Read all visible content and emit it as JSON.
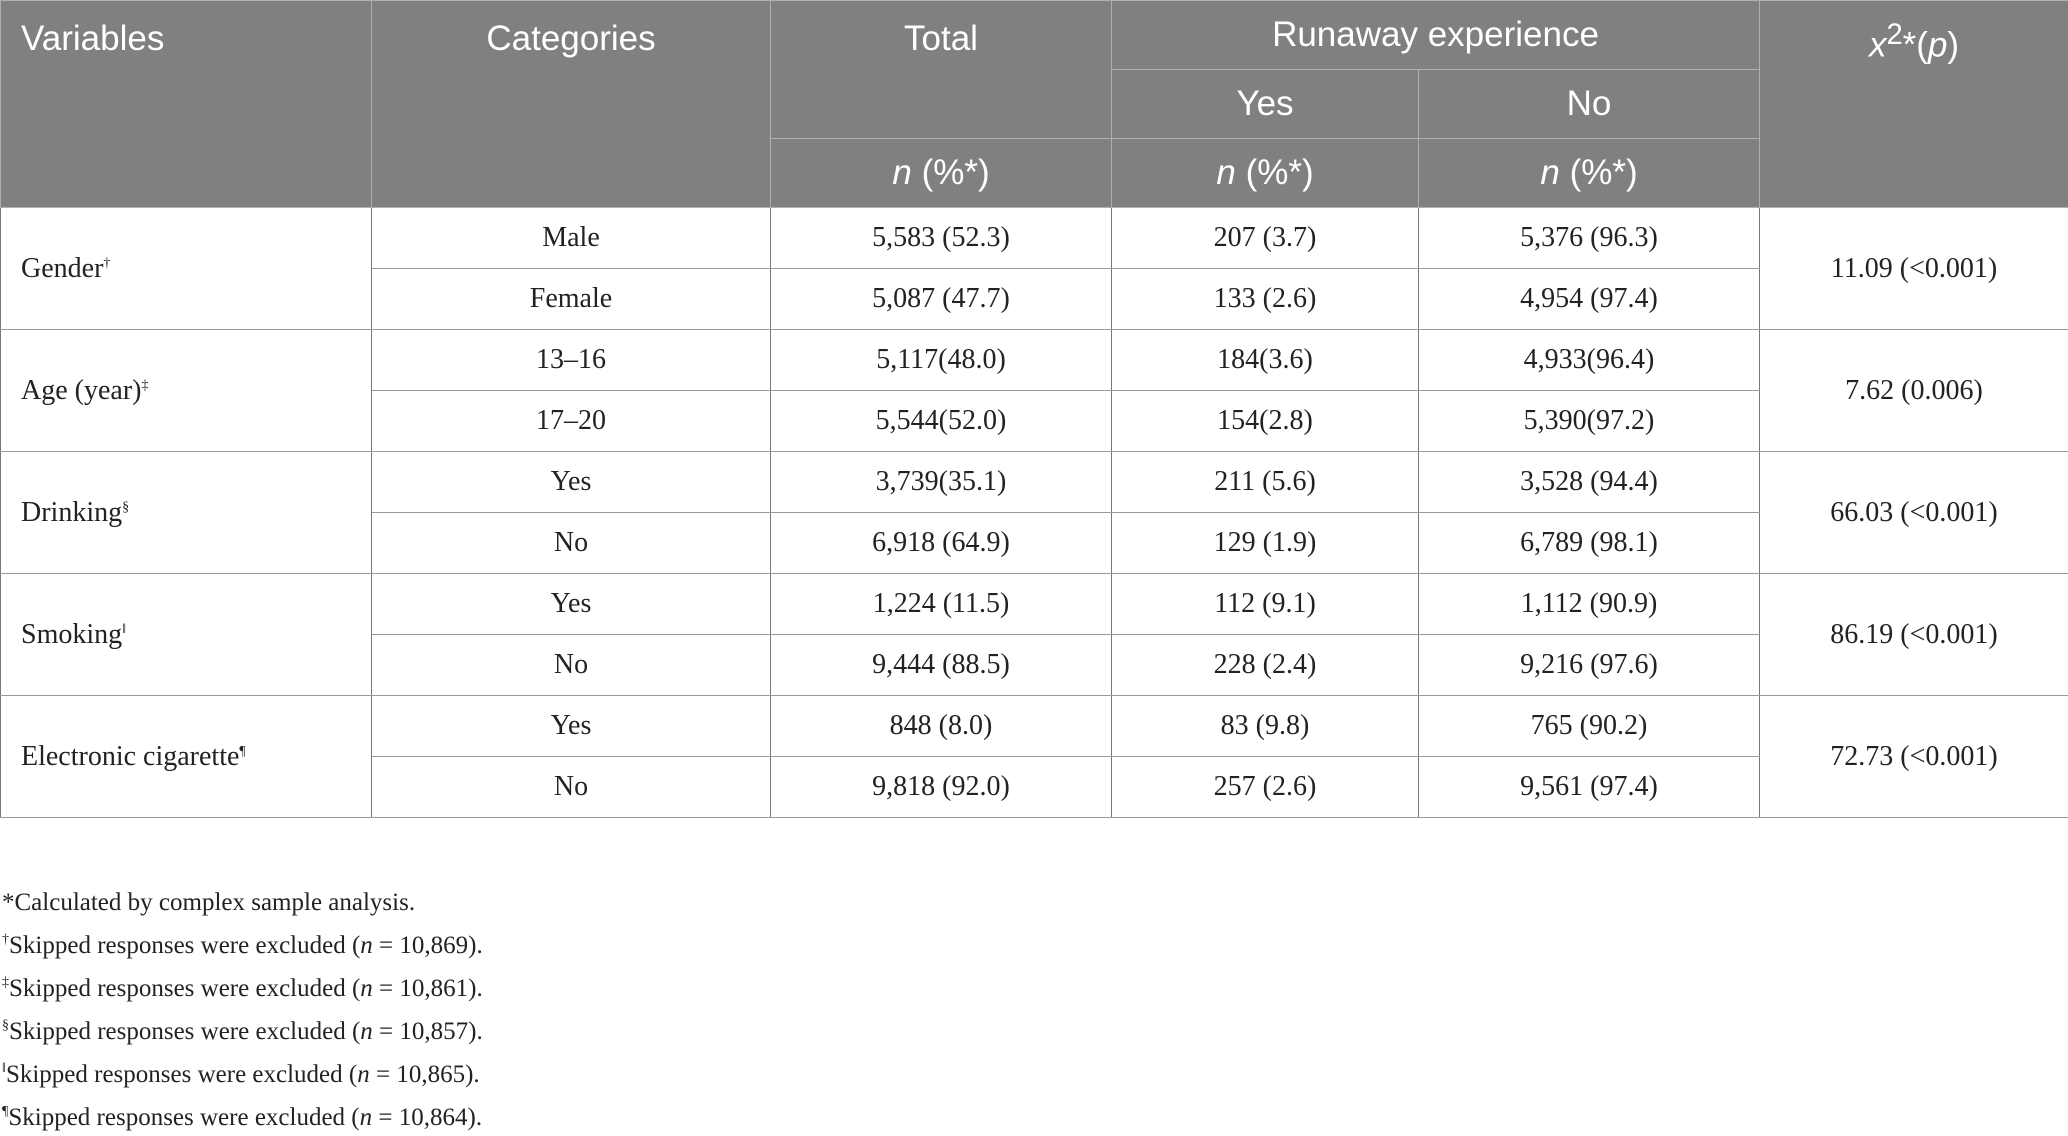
{
  "header": {
    "variables": "Variables",
    "categories": "Categories",
    "total": "Total",
    "runaway": "Runaway experience",
    "chi": "x",
    "chi_sup": "2",
    "chi_star": "*(",
    "chi_p": "p",
    "chi_close": ")",
    "yes": "Yes",
    "no": "No",
    "n_label": "n",
    "pct_label": " (%*)"
  },
  "rows": [
    {
      "variable": "Gender",
      "mark": "†",
      "stat": "11.09 (<0.001)",
      "cats": [
        {
          "cat": "Male",
          "total": "5,583 (52.3)",
          "yes": "207 (3.7)",
          "no": "5,376 (96.3)"
        },
        {
          "cat": "Female",
          "total": "5,087 (47.7)",
          "yes": "133 (2.6)",
          "no": "4,954 (97.4)"
        }
      ]
    },
    {
      "variable": "Age (year)",
      "mark": "‡",
      "stat": "7.62 (0.006)",
      "cats": [
        {
          "cat": "13–16",
          "total": "5,117(48.0)",
          "yes": "184(3.6)",
          "no": "4,933(96.4)"
        },
        {
          "cat": "17–20",
          "total": "5,544(52.0)",
          "yes": "154(2.8)",
          "no": "5,390(97.2)"
        }
      ]
    },
    {
      "variable": "Drinking",
      "mark": "§",
      "stat": "66.03 (<0.001)",
      "cats": [
        {
          "cat": "Yes",
          "total": "3,739(35.1)",
          "yes": "211 (5.6)",
          "no": "3,528 (94.4)"
        },
        {
          "cat": "No",
          "total": "6,918 (64.9)",
          "yes": "129 (1.9)",
          "no": "6,789 (98.1)"
        }
      ]
    },
    {
      "variable": "Smoking",
      "mark": "‖",
      "stat": "86.19 (<0.001)",
      "cats": [
        {
          "cat": "Yes",
          "total": "1,224 (11.5)",
          "yes": "112 (9.1)",
          "no": "1,112 (90.9)"
        },
        {
          "cat": "No",
          "total": "9,444 (88.5)",
          "yes": "228 (2.4)",
          "no": "9,216 (97.6)"
        }
      ]
    },
    {
      "variable": "Electronic cigarette",
      "mark": "¶",
      "stat": "72.73 (<0.001)",
      "cats": [
        {
          "cat": "Yes",
          "total": "848 (8.0)",
          "yes": "83 (9.8)",
          "no": "765 (90.2)"
        },
        {
          "cat": "No",
          "total": "9,818 (92.0)",
          "yes": "257 (2.6)",
          "no": "9,561 (97.4)"
        }
      ]
    }
  ],
  "notes": {
    "star": "*Calculated by complex sample analysis.",
    "lines": [
      {
        "mark": "†",
        "pre": "Skipped responses were excluded (",
        "n": "n",
        "post": " = 10,869)."
      },
      {
        "mark": "‡",
        "pre": "Skipped responses were excluded (",
        "n": "n",
        "post": " = 10,861)."
      },
      {
        "mark": "§",
        "pre": "Skipped responses were excluded (",
        "n": "n",
        "post": " = 10,857)."
      },
      {
        "mark": "‖",
        "pre": "Skipped responses were excluded (",
        "n": "n",
        "post": " = 10,865)."
      },
      {
        "mark": "¶",
        "pre": "Skipped responses were excluded (",
        "n": "n",
        "post": " = 10,864)."
      }
    ]
  }
}
